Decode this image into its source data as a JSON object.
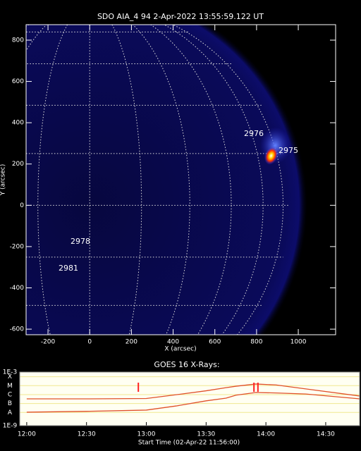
{
  "chart_data": [
    {
      "type": "image",
      "title": "SDO AIA_4 94  2-Apr-2022 13:55:59.122 UT",
      "xlabel": "X (arcsec)",
      "ylabel": "Y (arcsec)",
      "xlim": [
        -305,
        1179
      ],
      "ylim": [
        -627,
        875
      ],
      "xticks": [
        -200,
        0,
        200,
        400,
        600,
        800,
        1000
      ],
      "yticks": [
        -600,
        -400,
        -200,
        0,
        200,
        400,
        600,
        800
      ],
      "regions": [
        "2976",
        "2975",
        "2978",
        "2981"
      ]
    },
    {
      "type": "line",
      "title": "GOES 16 X-Rays:",
      "xlabel": "Start Time (02-Apr-22 11:56:00)",
      "log": true,
      "xlim": [
        -3.5,
        167
      ],
      "ylim": [
        1e-09,
        0.001
      ],
      "xticks": [
        {
          "value": 0,
          "label": "12:00"
        },
        {
          "value": 30,
          "label": "12:30"
        },
        {
          "value": 60,
          "label": "13:00"
        },
        {
          "value": 90,
          "label": "13:30"
        },
        {
          "value": 120,
          "label": "14:00"
        },
        {
          "value": 150,
          "label": "14:30"
        }
      ],
      "yticks": [
        {
          "value": 0.001,
          "label": "1E-3"
        },
        {
          "value": 0.0003,
          "label": "X"
        },
        {
          "value": 3e-05,
          "label": "M"
        },
        {
          "value": 3e-06,
          "label": "C"
        },
        {
          "value": 3e-07,
          "label": "B"
        },
        {
          "value": 3e-08,
          "label": "A"
        },
        {
          "value": 1e-09,
          "label": "1E-9"
        }
      ],
      "x": [
        0,
        30,
        60,
        75,
        90,
        100,
        105,
        115,
        125,
        140,
        167
      ],
      "series": [
        {
          "color": "#e0502a",
          "values": [
            1e-06,
            1e-06,
            1.1e-06,
            2.9e-06,
            8e-06,
            1.8e-05,
            2.6e-05,
            4.6e-05,
            3.6e-05,
            1.3e-05,
            2.1e-06
          ]
        },
        {
          "color": "#e0502a",
          "values": [
            3.2e-08,
            4e-08,
            5.5e-08,
            1.6e-07,
            6e-07,
            1.2e-06,
            2.6e-06,
            5.1e-06,
            4.6e-06,
            3.5e-06,
            1e-06
          ]
        }
      ],
      "markers": [
        56,
        114,
        116
      ],
      "marker_color": "#ff2020"
    }
  ]
}
